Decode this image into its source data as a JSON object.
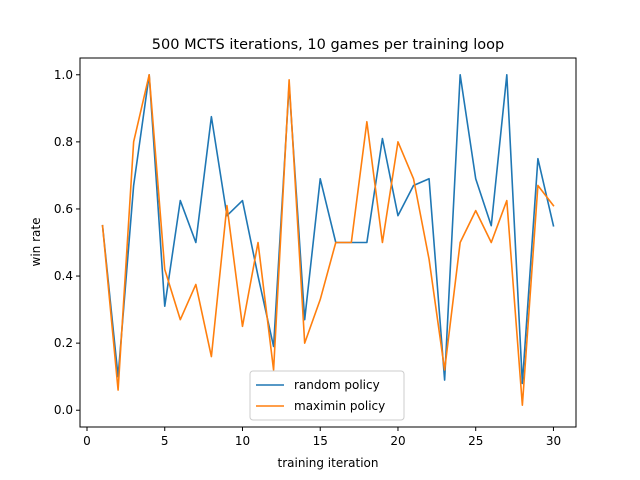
{
  "chart_data": {
    "type": "line",
    "title": "500 MCTS iterations, 10 games per training loop",
    "xlabel": "training iteration",
    "ylabel": "win rate",
    "xlim": [
      -0.45,
      31.45
    ],
    "ylim": [
      -0.05,
      1.05
    ],
    "xticks": [
      0,
      5,
      10,
      15,
      20,
      25,
      30
    ],
    "yticks": [
      0.0,
      0.2,
      0.4,
      0.6,
      0.8,
      1.0
    ],
    "grid": false,
    "legend_position": "lower center",
    "x": [
      1,
      2,
      3,
      4,
      5,
      6,
      7,
      8,
      9,
      10,
      11,
      12,
      13,
      14,
      15,
      16,
      17,
      18,
      19,
      20,
      21,
      22,
      23,
      24,
      25,
      26,
      27,
      28,
      29,
      30
    ],
    "series": [
      {
        "name": "random policy",
        "color": "#1f77b4",
        "values": [
          0.55,
          0.1,
          0.67,
          1.0,
          0.31,
          0.625,
          0.5,
          0.875,
          0.58,
          0.625,
          0.4,
          0.19,
          0.97,
          0.27,
          0.69,
          0.5,
          0.5,
          0.5,
          0.81,
          0.58,
          0.67,
          0.69,
          0.09,
          1.0,
          0.69,
          0.55,
          1.0,
          0.08,
          0.75,
          0.55
        ]
      },
      {
        "name": "maximin policy",
        "color": "#ff7f0e",
        "values": [
          0.55,
          0.06,
          0.8,
          1.0,
          0.42,
          0.27,
          0.375,
          0.16,
          0.61,
          0.25,
          0.5,
          0.12,
          0.985,
          0.2,
          0.33,
          0.5,
          0.5,
          0.86,
          0.5,
          0.8,
          0.69,
          0.45,
          0.12,
          0.5,
          0.595,
          0.5,
          0.625,
          0.015,
          0.67,
          0.61
        ]
      }
    ]
  }
}
